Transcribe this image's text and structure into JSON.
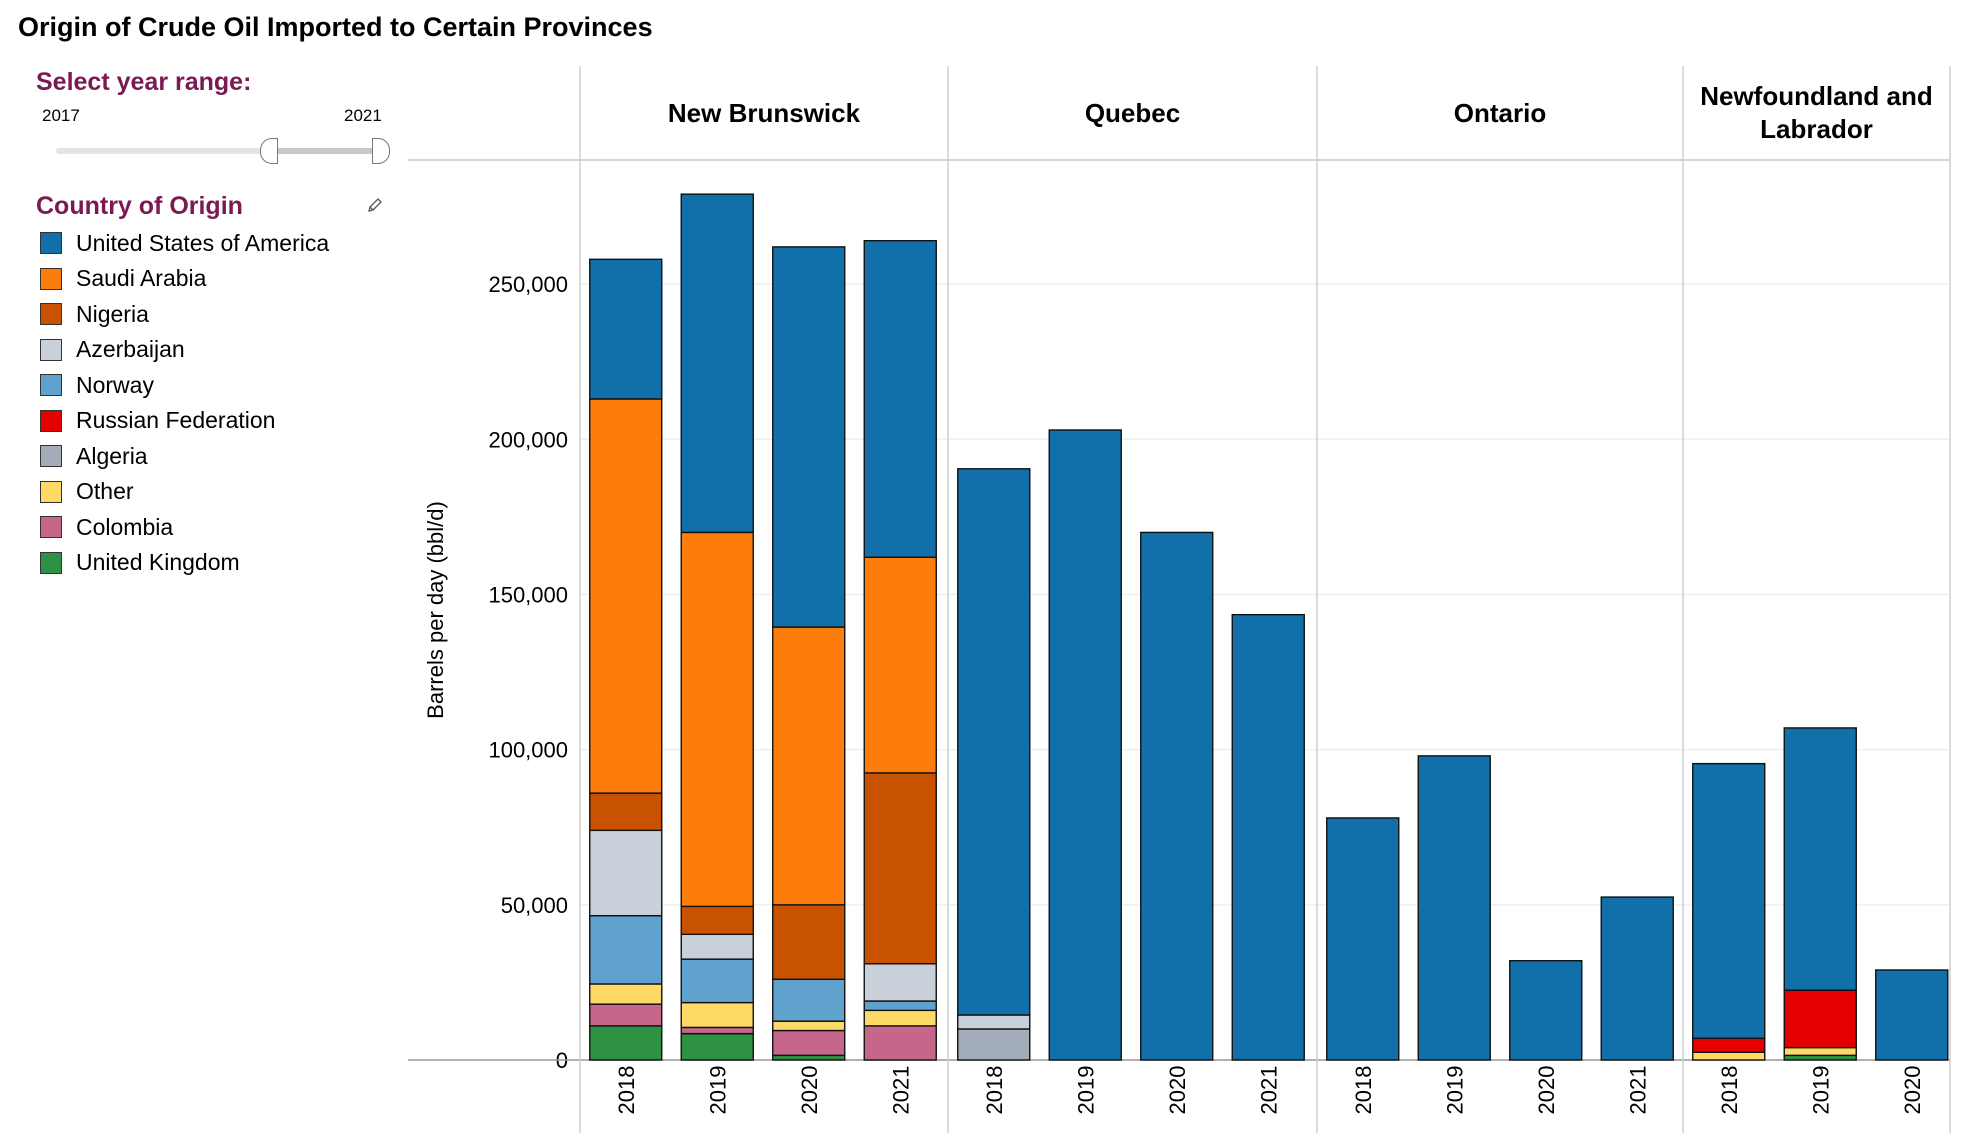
{
  "page": {
    "title": "Origin of Crude Oil Imported to Certain Provinces"
  },
  "year_filter": {
    "label": "Select year range:",
    "start": "2017",
    "end": "2021"
  },
  "legend": {
    "title": "Country of Origin",
    "icon": "pencil-icon",
    "items": [
      {
        "label": "United States of America",
        "color": "#1170aa"
      },
      {
        "label": "Saudi Arabia",
        "color": "#fc7d0b"
      },
      {
        "label": "Nigeria",
        "color": "#c85200"
      },
      {
        "label": "Azerbaijan",
        "color": "#c8d0d9"
      },
      {
        "label": "Norway",
        "color": "#5fa2ce"
      },
      {
        "label": "Russian Federation",
        "color": "#e50000"
      },
      {
        "label": "Algeria",
        "color": "#a3acb9"
      },
      {
        "label": "Other",
        "color": "#ffd966"
      },
      {
        "label": "Colombia",
        "color": "#c5668a"
      },
      {
        "label": "United Kingdom",
        "color": "#2e9143"
      }
    ]
  },
  "chart_data": {
    "type": "bar",
    "stacked": true,
    "ylabel": "Barrels per day (bbl/d)",
    "ylim": [
      0,
      290000
    ],
    "yticks": [
      0,
      50000,
      100000,
      150000,
      200000,
      250000
    ],
    "ytick_labels": [
      "0",
      "50,000",
      "100,000",
      "150,000",
      "200,000",
      "250,000"
    ],
    "stack_order": [
      "United Kingdom",
      "Colombia",
      "Other",
      "Algeria",
      "Russian Federation",
      "Norway",
      "Azerbaijan",
      "Nigeria",
      "Saudi Arabia",
      "United States of America"
    ],
    "panels": [
      {
        "name": "New Brunswick",
        "bars": [
          {
            "year": "2018",
            "values": {
              "United Kingdom": 11000,
              "Colombia": 7000,
              "Other": 6500,
              "Norway": 22000,
              "Azerbaijan": 27500,
              "Nigeria": 12000,
              "Saudi Arabia": 127000,
              "United States of America": 45000
            }
          },
          {
            "year": "2019",
            "values": {
              "United Kingdom": 8500,
              "Colombia": 2000,
              "Other": 8000,
              "Norway": 14000,
              "Azerbaijan": 8000,
              "Nigeria": 9000,
              "Saudi Arabia": 120500,
              "United States of America": 109000
            }
          },
          {
            "year": "2020",
            "values": {
              "United Kingdom": 1500,
              "Colombia": 8000,
              "Other": 3000,
              "Norway": 13500,
              "Nigeria": 24000,
              "Saudi Arabia": 89500,
              "United States of America": 122500
            }
          },
          {
            "year": "2021",
            "values": {
              "Colombia": 11000,
              "Other": 5000,
              "Norway": 3000,
              "Azerbaijan": 12000,
              "Nigeria": 61500,
              "Saudi Arabia": 69500,
              "United States of America": 102000
            }
          }
        ]
      },
      {
        "name": "Quebec",
        "bars": [
          {
            "year": "2018",
            "values": {
              "Algeria": 10000,
              "Azerbaijan": 4500,
              "United States of America": 176000
            }
          },
          {
            "year": "2019",
            "values": {
              "United States of America": 203000
            }
          },
          {
            "year": "2020",
            "values": {
              "United States of America": 170000
            }
          },
          {
            "year": "2021",
            "values": {
              "United States of America": 143500
            }
          }
        ]
      },
      {
        "name": "Ontario",
        "bars": [
          {
            "year": "2018",
            "values": {
              "United States of America": 78000
            }
          },
          {
            "year": "2019",
            "values": {
              "United States of America": 98000
            }
          },
          {
            "year": "2020",
            "values": {
              "United States of America": 32000
            }
          },
          {
            "year": "2021",
            "values": {
              "United States of America": 52500
            }
          }
        ]
      },
      {
        "name": "Newfoundland and Labrador",
        "bars": [
          {
            "year": "2018",
            "values": {
              "Other": 2500,
              "Russian Federation": 4500,
              "United States of America": 88500
            }
          },
          {
            "year": "2019",
            "values": {
              "United Kingdom": 1500,
              "Other": 2500,
              "Russian Federation": 18500,
              "United States of America": 84500
            }
          },
          {
            "year": "2020",
            "values": {
              "United States of America": 29000
            }
          }
        ]
      }
    ]
  }
}
